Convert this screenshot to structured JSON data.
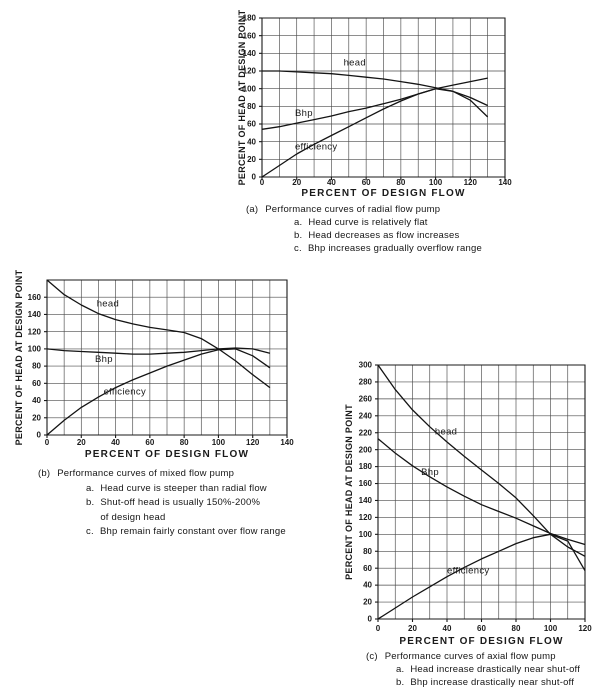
{
  "colors": {
    "paper": "#ffffff",
    "ink": "#1a1a1a",
    "grid": "#323232",
    "curve": "#141414"
  },
  "chart_data": [
    {
      "id": "a",
      "type": "line",
      "xlabel": "PERCENT OF DESIGN FLOW",
      "ylabel": "PERCENT OF HEAD AT DESIGN POINT",
      "xlim": [
        0,
        140
      ],
      "ylim": [
        0,
        180
      ],
      "grid": true,
      "grid_step_x": 10,
      "grid_step_y": 20,
      "xticks": [
        0,
        20,
        40,
        60,
        80,
        100,
        120,
        140
      ],
      "yticks": [
        0,
        20,
        40,
        60,
        80,
        100,
        120,
        140,
        160,
        180
      ],
      "legend_position": "inline-labels",
      "series": [
        {
          "name": "head",
          "label": "head",
          "label_at": [
            47,
            126
          ],
          "points": [
            [
              0,
              120
            ],
            [
              10,
              120
            ],
            [
              20,
              119
            ],
            [
              30,
              118
            ],
            [
              40,
              117
            ],
            [
              50,
              115
            ],
            [
              60,
              113
            ],
            [
              70,
              111
            ],
            [
              80,
              108
            ],
            [
              90,
              105
            ],
            [
              100,
              101
            ],
            [
              110,
              97
            ],
            [
              120,
              90
            ],
            [
              130,
              81
            ]
          ]
        },
        {
          "name": "Bhp",
          "label": "Bhp",
          "label_at": [
            19,
            69
          ],
          "points": [
            [
              0,
              54
            ],
            [
              10,
              57
            ],
            [
              20,
              61
            ],
            [
              30,
              65
            ],
            [
              40,
              69
            ],
            [
              50,
              74
            ],
            [
              60,
              78
            ],
            [
              70,
              83
            ],
            [
              80,
              88
            ],
            [
              90,
              94
            ],
            [
              100,
              100
            ],
            [
              110,
              104
            ],
            [
              120,
              108
            ],
            [
              130,
              112
            ]
          ]
        },
        {
          "name": "efficiency",
          "label": "efficiency",
          "label_at": [
            19,
            31
          ],
          "points": [
            [
              0,
              0
            ],
            [
              10,
              13
            ],
            [
              20,
              26
            ],
            [
              30,
              37
            ],
            [
              40,
              47
            ],
            [
              50,
              57
            ],
            [
              60,
              67
            ],
            [
              70,
              77
            ],
            [
              80,
              86
            ],
            [
              90,
              94
            ],
            [
              100,
              100
            ],
            [
              110,
              97
            ],
            [
              120,
              87
            ],
            [
              130,
              68
            ]
          ]
        }
      ],
      "caption": {
        "tag": "(a)",
        "title": "Performance curves of radial flow pump",
        "notes": [
          {
            "tag": "a.",
            "text": "Head curve is relatively flat"
          },
          {
            "tag": "b.",
            "text": "Head decreases as flow increases"
          },
          {
            "tag": "c.",
            "text": "Bhp increases gradually overflow range"
          }
        ]
      }
    },
    {
      "id": "b",
      "type": "line",
      "xlabel": "PERCENT OF DESIGN FLOW",
      "ylabel": "PERCENT OF HEAD AT DESIGN POINT",
      "xlim": [
        0,
        140
      ],
      "ylim": [
        0,
        180
      ],
      "grid": true,
      "grid_step_x": 10,
      "grid_step_y": 20,
      "xticks": [
        0,
        20,
        40,
        60,
        80,
        100,
        120,
        140
      ],
      "yticks": [
        0,
        20,
        40,
        60,
        80,
        100,
        120,
        140,
        160
      ],
      "legend_position": "inline-labels",
      "series": [
        {
          "name": "head",
          "label": "head",
          "label_at": [
            29,
            149
          ],
          "points": [
            [
              0,
              180
            ],
            [
              10,
              163
            ],
            [
              20,
              151
            ],
            [
              30,
              141
            ],
            [
              40,
              134
            ],
            [
              50,
              129
            ],
            [
              60,
              125
            ],
            [
              70,
              122
            ],
            [
              80,
              119
            ],
            [
              90,
              112
            ],
            [
              100,
              100
            ],
            [
              110,
              86
            ],
            [
              120,
              70
            ],
            [
              130,
              55
            ]
          ]
        },
        {
          "name": "Bhp",
          "label": "Bhp",
          "label_at": [
            28,
            85
          ],
          "points": [
            [
              0,
              100
            ],
            [
              10,
              98
            ],
            [
              20,
              97
            ],
            [
              30,
              96
            ],
            [
              40,
              95
            ],
            [
              50,
              94
            ],
            [
              60,
              94
            ],
            [
              70,
              95
            ],
            [
              80,
              96
            ],
            [
              90,
              98
            ],
            [
              100,
              100
            ],
            [
              110,
              101
            ],
            [
              120,
              100
            ],
            [
              130,
              95
            ]
          ]
        },
        {
          "name": "efficiency",
          "label": "efficiency",
          "label_at": [
            33,
            47
          ],
          "points": [
            [
              0,
              0
            ],
            [
              10,
              17
            ],
            [
              20,
              32
            ],
            [
              30,
              44
            ],
            [
              40,
              55
            ],
            [
              50,
              64
            ],
            [
              60,
              72
            ],
            [
              70,
              80
            ],
            [
              80,
              87
            ],
            [
              90,
              94
            ],
            [
              100,
              99
            ],
            [
              110,
              100
            ],
            [
              120,
              92
            ],
            [
              130,
              78
            ]
          ]
        }
      ],
      "caption": {
        "tag": "(b)",
        "title": "Performance curves of mixed flow pump",
        "notes": [
          {
            "tag": "a.",
            "text": "Head curve is steeper than radial flow"
          },
          {
            "tag": "b.",
            "text": "Shut-off head is usually 150%-200%",
            "line2": "of design head"
          },
          {
            "tag": "c.",
            "text": "Bhp remain fairly constant over flow range"
          }
        ]
      }
    },
    {
      "id": "c",
      "type": "line",
      "xlabel": "PERCENT OF DESIGN FLOW",
      "ylabel": "PERCENT OF HEAD AT DESIGN POINT",
      "xlim": [
        0,
        120
      ],
      "ylim": [
        0,
        300
      ],
      "grid": true,
      "grid_step_x": 10,
      "grid_step_y": 20,
      "xticks": [
        0,
        20,
        40,
        60,
        80,
        100,
        120
      ],
      "yticks": [
        0,
        20,
        40,
        60,
        80,
        100,
        120,
        140,
        160,
        180,
        200,
        220,
        240,
        260,
        280,
        300
      ],
      "legend_position": "inline-labels",
      "series": [
        {
          "name": "head",
          "label": "head",
          "label_at": [
            33,
            218
          ],
          "points": [
            [
              0,
              300
            ],
            [
              10,
              271
            ],
            [
              20,
              247
            ],
            [
              30,
              227
            ],
            [
              40,
              209
            ],
            [
              50,
              192
            ],
            [
              60,
              176
            ],
            [
              70,
              160
            ],
            [
              80,
              143
            ],
            [
              90,
              122
            ],
            [
              100,
              100
            ],
            [
              110,
              85
            ],
            [
              120,
              74
            ]
          ]
        },
        {
          "name": "Bhp",
          "label": "Bhp",
          "label_at": [
            25,
            170
          ],
          "points": [
            [
              0,
              213
            ],
            [
              10,
              196
            ],
            [
              20,
              181
            ],
            [
              30,
              168
            ],
            [
              40,
              156
            ],
            [
              50,
              145
            ],
            [
              60,
              135
            ],
            [
              70,
              127
            ],
            [
              80,
              119
            ],
            [
              90,
              110
            ],
            [
              100,
              101
            ],
            [
              110,
              94
            ],
            [
              120,
              88
            ]
          ]
        },
        {
          "name": "efficiency",
          "label": "efficiency",
          "label_at": [
            40,
            54
          ],
          "points": [
            [
              0,
              0
            ],
            [
              10,
              13
            ],
            [
              20,
              26
            ],
            [
              30,
              38
            ],
            [
              40,
              50
            ],
            [
              50,
              61
            ],
            [
              60,
              71
            ],
            [
              70,
              80
            ],
            [
              80,
              89
            ],
            [
              90,
              96
            ],
            [
              100,
              100
            ],
            [
              110,
              92
            ],
            [
              120,
              57
            ]
          ]
        }
      ],
      "caption": {
        "tag": "(c)",
        "title": "Performance curves of axial flow pump",
        "notes": [
          {
            "tag": "a.",
            "text": "Head increase drastically near shut-off"
          },
          {
            "tag": "b.",
            "text": "Bhp increase drastically near shut-off"
          }
        ]
      }
    }
  ]
}
